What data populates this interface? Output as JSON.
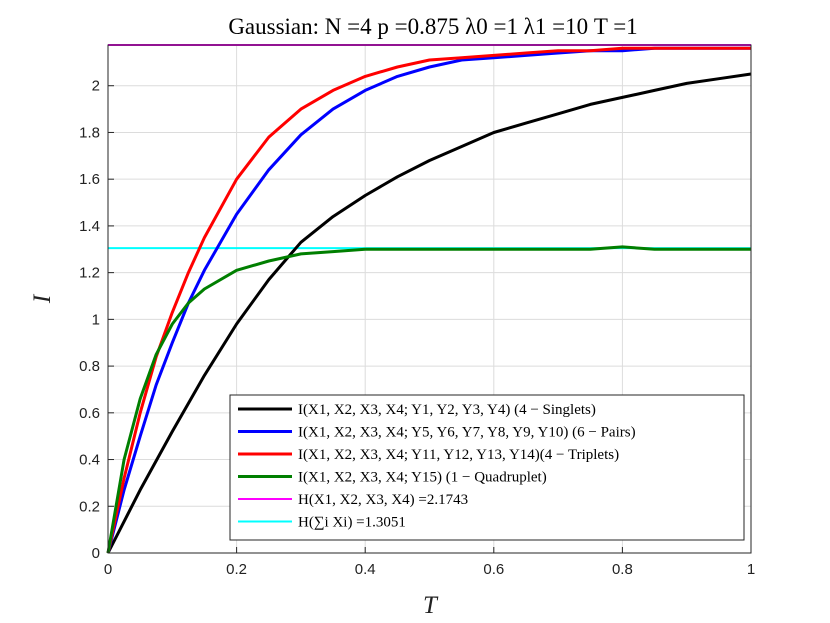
{
  "chart_data": {
    "type": "line",
    "title": "Gaussian:      N =4    p =0.875    λ0 =1    λ1 =10    T =1",
    "xlabel": "T",
    "ylabel": "I",
    "xlim": [
      0,
      1
    ],
    "ylim": [
      0,
      2.1743
    ],
    "x_ticks": [
      "0",
      "0.2",
      "0.4",
      "0.6",
      "0.8",
      "1"
    ],
    "y_ticks": [
      "0",
      "0.2",
      "0.4",
      "0.6",
      "0.8",
      "1",
      "1.2",
      "1.4",
      "1.6",
      "1.8",
      "2"
    ],
    "grid": true,
    "legend_position": "bottom-right",
    "series": [
      {
        "name": "I(X1, X2, X3, X4; Y1, Y2, Y3, Y4)   (4 − Singlets)",
        "color": "#000000",
        "x": [
          0,
          0.05,
          0.1,
          0.15,
          0.2,
          0.25,
          0.3,
          0.35,
          0.4,
          0.45,
          0.5,
          0.55,
          0.6,
          0.65,
          0.7,
          0.75,
          0.8,
          0.85,
          0.9,
          0.95,
          1.0
        ],
        "y": [
          0,
          0.27,
          0.52,
          0.76,
          0.98,
          1.17,
          1.33,
          1.44,
          1.53,
          1.61,
          1.68,
          1.74,
          1.8,
          1.84,
          1.88,
          1.92,
          1.95,
          1.98,
          2.01,
          2.03,
          2.05
        ]
      },
      {
        "name": "I(X1, X2, X3, X4; Y5, Y6, Y7, Y8, Y9, Y10)   (6 − Pairs)",
        "color": "#0000ff",
        "x": [
          0,
          0.025,
          0.05,
          0.075,
          0.1,
          0.125,
          0.15,
          0.2,
          0.25,
          0.3,
          0.35,
          0.4,
          0.45,
          0.5,
          0.55,
          0.6,
          0.65,
          0.7,
          0.75,
          0.8,
          0.85,
          0.9,
          0.95,
          1.0
        ],
        "y": [
          0,
          0.27,
          0.5,
          0.72,
          0.9,
          1.07,
          1.21,
          1.45,
          1.64,
          1.79,
          1.9,
          1.98,
          2.04,
          2.08,
          2.11,
          2.12,
          2.13,
          2.14,
          2.15,
          2.15,
          2.16,
          2.16,
          2.16,
          2.16
        ]
      },
      {
        "name": "I(X1, X2, X3, X4; Y11, Y12, Y13, Y14)(4 − Triplets)",
        "color": "#ff0000",
        "x": [
          0,
          0.025,
          0.05,
          0.075,
          0.1,
          0.125,
          0.15,
          0.2,
          0.25,
          0.3,
          0.35,
          0.4,
          0.45,
          0.5,
          0.55,
          0.6,
          0.65,
          0.7,
          0.75,
          0.8,
          0.85,
          0.9,
          0.95,
          1.0
        ],
        "y": [
          0,
          0.32,
          0.6,
          0.84,
          1.03,
          1.2,
          1.35,
          1.6,
          1.78,
          1.9,
          1.98,
          2.04,
          2.08,
          2.11,
          2.12,
          2.13,
          2.14,
          2.15,
          2.15,
          2.16,
          2.16,
          2.16,
          2.16,
          2.16
        ]
      },
      {
        "name": "I(X1, X2, X3, X4; Y15)   (1 − Quadruplet)",
        "color": "#007f00",
        "x": [
          0,
          0.025,
          0.05,
          0.075,
          0.1,
          0.125,
          0.15,
          0.2,
          0.25,
          0.3,
          0.35,
          0.4,
          0.45,
          0.5,
          0.55,
          0.6,
          0.65,
          0.7,
          0.75,
          0.8,
          0.85,
          0.9,
          0.95,
          1.0
        ],
        "y": [
          0,
          0.4,
          0.66,
          0.85,
          0.98,
          1.07,
          1.13,
          1.21,
          1.25,
          1.28,
          1.29,
          1.3,
          1.3,
          1.3,
          1.3,
          1.3,
          1.3,
          1.3,
          1.3,
          1.31,
          1.3,
          1.3,
          1.3,
          1.3
        ]
      }
    ],
    "reference_lines": [
      {
        "name": "H(X1, X2, X3, X4) =2.1743",
        "color": "#ff00ff",
        "y": 2.1743
      },
      {
        "name": "H(∑i Xi) =1.3051",
        "color": "#00ffff",
        "y": 1.3051
      }
    ]
  }
}
